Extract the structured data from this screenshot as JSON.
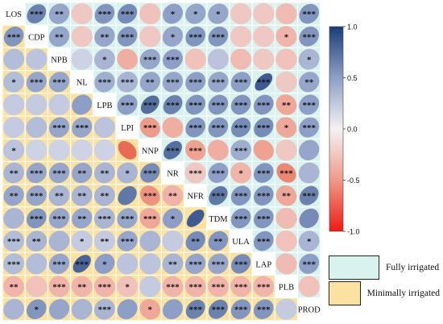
{
  "chart_data": {
    "type": "heatmap",
    "variables": [
      "LOS",
      "CDP",
      "NPB",
      "NL",
      "LPB",
      "LPI",
      "NNP",
      "NR",
      "NFR",
      "TDM",
      "ULA",
      "LAP",
      "PLB",
      "PROD"
    ],
    "upper_triangle_group": "Fully irrigated",
    "lower_triangle_group": "Minimally irrigated",
    "matrix": [
      [
        null,
        0.65,
        0.45,
        -0.15,
        0.55,
        0.6,
        -0.2,
        0.5,
        0.45,
        0.45,
        -0.15,
        -0.15,
        -0.25,
        0.55
      ],
      [
        0.55,
        null,
        0.45,
        -0.15,
        0.45,
        0.55,
        -0.15,
        0.45,
        0.55,
        0.55,
        -0.15,
        -0.15,
        -0.3,
        0.55
      ],
      [
        0.3,
        0.25,
        null,
        0.15,
        0.35,
        -0.35,
        0.45,
        0.5,
        -0.2,
        0.25,
        -0.25,
        -0.15,
        -0.2,
        0.35
      ],
      [
        0.3,
        0.45,
        0.45,
        null,
        0.4,
        0.35,
        0.45,
        0.45,
        0.5,
        0.45,
        0.5,
        0.85,
        -0.15,
        0.45
      ],
      [
        0.2,
        0.2,
        0.2,
        0.5,
        null,
        0.5,
        0.75,
        0.65,
        0.55,
        0.55,
        0.55,
        0.55,
        -0.4,
        0.5
      ],
      [
        0.2,
        0.3,
        0.45,
        0.45,
        0.25,
        null,
        -0.5,
        -0.35,
        0.55,
        0.55,
        0.6,
        0.6,
        -0.4,
        0.5
      ],
      [
        0.25,
        0.15,
        0.15,
        0.15,
        0.15,
        -0.75,
        null,
        0.75,
        -0.45,
        -0.35,
        0.4,
        -0.45,
        -0.15,
        0.45
      ],
      [
        0.35,
        0.45,
        0.45,
        0.45,
        0.35,
        0.35,
        0.6,
        null,
        -0.15,
        0.5,
        -0.3,
        0.55,
        -0.6,
        0.35
      ],
      [
        0.45,
        0.45,
        0.35,
        0.35,
        0.35,
        0.7,
        -0.55,
        -0.3,
        null,
        0.7,
        0.55,
        0.55,
        -0.4,
        0.65
      ],
      [
        0.35,
        0.55,
        0.45,
        0.45,
        0.35,
        0.45,
        -0.4,
        0.5,
        0.85,
        null,
        0.55,
        0.55,
        -0.25,
        0.6
      ],
      [
        0.3,
        0.35,
        0.35,
        0.2,
        0.2,
        0.45,
        0.35,
        0.2,
        0.6,
        0.55,
        null,
        0.55,
        -0.2,
        0.35
      ],
      [
        0.3,
        0.3,
        0.45,
        0.8,
        0.5,
        0.25,
        0.25,
        0.35,
        0.45,
        0.45,
        0.6,
        null,
        -0.25,
        0.5
      ],
      [
        -0.3,
        -0.2,
        -0.3,
        -0.3,
        -0.3,
        -0.2,
        0.2,
        -0.3,
        -0.3,
        -0.3,
        -0.3,
        -0.3,
        null,
        -0.2
      ],
      [
        0.35,
        0.55,
        0.45,
        0.35,
        0.35,
        0.5,
        -0.4,
        0.5,
        0.65,
        0.65,
        0.55,
        0.55,
        0.2,
        null
      ]
    ],
    "stars": [
      [
        "",
        "***",
        "**",
        "",
        "***",
        "***",
        "",
        "*",
        "*",
        "*",
        "",
        "",
        "",
        "***"
      ],
      [
        "***",
        "",
        "**",
        "",
        "**",
        "***",
        "",
        "*",
        "***",
        "***",
        "",
        "",
        "*",
        "***"
      ],
      [
        "",
        "",
        "",
        "",
        "*",
        "",
        "***",
        "***",
        "",
        "",
        "",
        "",
        "",
        "*"
      ],
      [
        "*",
        "***",
        "***",
        "",
        "***",
        "***",
        "**",
        "***",
        "***",
        "***",
        "***",
        "***",
        "",
        "**"
      ],
      [
        "",
        "",
        "",
        "",
        "",
        "***",
        "***",
        "***",
        "***",
        "***",
        "***",
        "***",
        "**",
        "***"
      ],
      [
        "",
        "",
        "***",
        "***",
        "",
        "",
        "***",
        "",
        "***",
        "***",
        "***",
        "***",
        "*",
        "***"
      ],
      [
        "*",
        "",
        "",
        "",
        "",
        "",
        "",
        "***",
        "***",
        "",
        "***",
        "",
        "",
        ""
      ],
      [
        "**",
        "***",
        "***",
        "**",
        "**",
        "*",
        "***",
        "",
        "***",
        "***",
        "*",
        "***",
        "***",
        ""
      ],
      [
        "**",
        "***",
        "**",
        "**",
        "**",
        "",
        "***",
        "**",
        "",
        "***",
        "***",
        "***",
        "**",
        "***"
      ],
      [
        "",
        "***",
        "***",
        "**",
        "***",
        "***",
        "***",
        "*",
        "",
        "",
        "***",
        "***",
        "",
        ""
      ],
      [
        "***",
        "**",
        "",
        "*",
        "**",
        "***",
        "",
        "",
        "**",
        "**",
        "",
        "***",
        "",
        "*"
      ],
      [
        "***",
        "",
        "***",
        "***",
        "*",
        "",
        "",
        "**",
        "***",
        "***",
        "***",
        "",
        "",
        "***"
      ],
      [
        "**",
        "",
        "***",
        "**",
        "***",
        "*",
        "",
        "***",
        "***",
        "***",
        "***",
        "***",
        "",
        ""
      ],
      [
        "",
        "*",
        "",
        "",
        "***",
        "",
        "*",
        "",
        "***",
        "***",
        "***",
        "***",
        "",
        ""
      ]
    ],
    "colorbar": {
      "min": -1.0,
      "max": 1.0,
      "ticks": [
        "1.0",
        "0.5",
        "0.0",
        "-0.5",
        "-1.0"
      ]
    },
    "legend": [
      {
        "label": "Fully irrigated",
        "color": "#d9f2ee"
      },
      {
        "label": "Minimally irrigated",
        "color": "#fce2a0"
      }
    ]
  }
}
